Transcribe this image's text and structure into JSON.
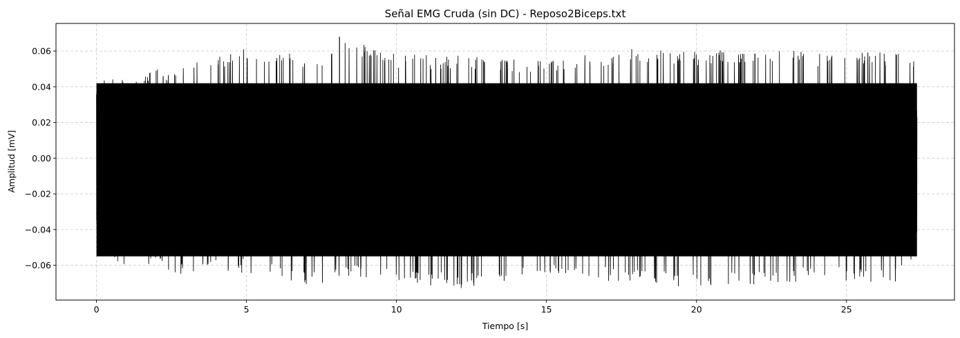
{
  "chart_data": {
    "type": "line",
    "title": "Señal EMG Cruda (sin DC) - Reposo2Biceps.txt",
    "xlabel": "Tiempo [s]",
    "ylabel": "Amplitud [mV]",
    "xlim": [
      -1.35,
      28.6
    ],
    "ylim": [
      -0.0795,
      0.0755
    ],
    "xticks": [
      0,
      5,
      10,
      15,
      20,
      25
    ],
    "xtick_labels": [
      "0",
      "5",
      "10",
      "15",
      "20",
      "25"
    ],
    "yticks": [
      -0.06,
      -0.04,
      -0.02,
      0.0,
      0.02,
      0.04,
      0.06
    ],
    "ytick_labels": [
      "−0.06",
      "−0.04",
      "−0.02",
      "0.00",
      "0.02",
      "0.04",
      "0.06"
    ],
    "grid": true,
    "series": [
      {
        "color": "#000000",
        "x_range": [
          0,
          27.35
        ],
        "typical_upper": 0.042,
        "typical_lower": -0.055,
        "max": 0.068,
        "max_at": 8.1,
        "min": -0.073,
        "envelope_samples_x": [
          0,
          0.5,
          1,
          2,
          3,
          5,
          7.7,
          8.1,
          10,
          12.3,
          15,
          18.2,
          20,
          22.6,
          24,
          26.6,
          27.35
        ],
        "envelope_samples_upper": [
          0.042,
          0.05,
          0.043,
          0.05,
          0.052,
          0.062,
          0.057,
          0.068,
          0.058,
          0.058,
          0.055,
          0.062,
          0.06,
          0.062,
          0.059,
          0.06,
          0.058
        ],
        "envelope_samples_lower": [
          -0.053,
          -0.057,
          -0.062,
          -0.062,
          -0.066,
          -0.064,
          -0.073,
          -0.066,
          -0.07,
          -0.073,
          -0.067,
          -0.07,
          -0.073,
          -0.071,
          -0.068,
          -0.07,
          -0.057
        ]
      }
    ]
  }
}
